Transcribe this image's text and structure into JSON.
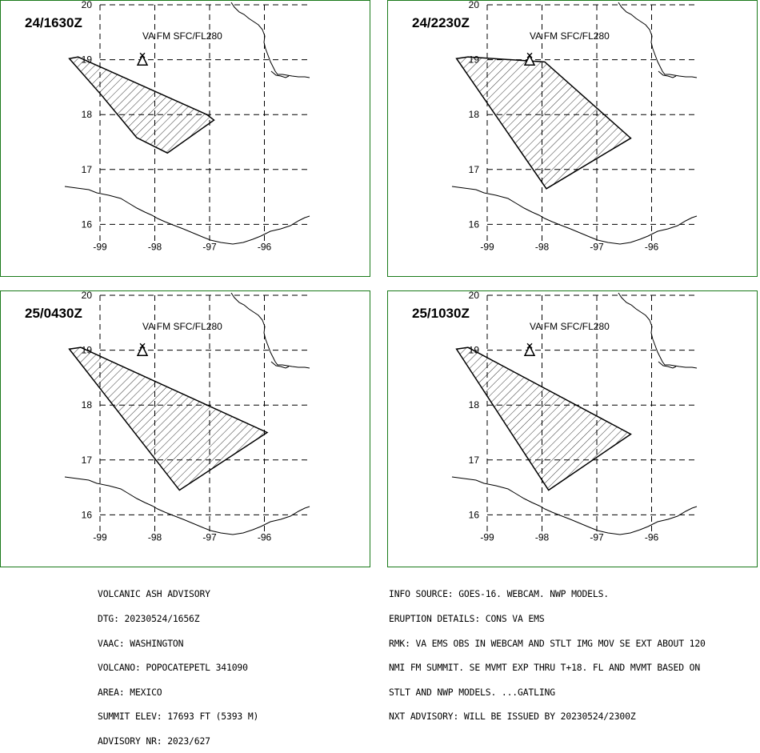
{
  "panels": [
    {
      "valid_time": "24/1630Z",
      "layer": "VA FM SFC/FL280",
      "ash_polygon": [
        [
          -99.56,
          19.02
        ],
        [
          -98.97,
          18.35
        ],
        [
          -98.33,
          17.58
        ],
        [
          -97.77,
          17.3
        ],
        [
          -96.92,
          17.9
        ],
        [
          -97.05,
          18.0
        ],
        [
          -99.4,
          19.05
        ]
      ]
    },
    {
      "valid_time": "24/2230Z",
      "layer": "VA FM SFC/FL280",
      "ash_polygon": [
        [
          -99.56,
          19.02
        ],
        [
          -97.92,
          16.65
        ],
        [
          -96.38,
          17.57
        ],
        [
          -97.95,
          18.96
        ],
        [
          -99.35,
          19.05
        ]
      ]
    },
    {
      "valid_time": "25/0430Z",
      "layer": "VA FM SFC/FL280",
      "ash_polygon": [
        [
          -99.56,
          19.02
        ],
        [
          -97.55,
          16.45
        ],
        [
          -95.95,
          17.5
        ],
        [
          -99.35,
          19.05
        ]
      ]
    },
    {
      "valid_time": "25/1030Z",
      "layer": "VA FM SFC/FL280",
      "ash_polygon": [
        [
          -99.56,
          19.02
        ],
        [
          -97.88,
          16.45
        ],
        [
          -96.38,
          17.47
        ],
        [
          -99.35,
          19.05
        ]
      ]
    }
  ],
  "volcano": {
    "name": "POPOCATEPETL",
    "lon": -98.62,
    "lat": 19.02
  },
  "axes": {
    "lat_ticks": [
      20,
      19,
      18,
      17,
      16
    ],
    "lon_ticks": [
      -99,
      -98,
      -97,
      -96
    ],
    "lon_range": [
      -99.1,
      -95.9
    ],
    "lat_range": [
      16.0,
      20.0
    ]
  },
  "advisory_left": [
    "VOLCANIC ASH ADVISORY",
    "DTG: 20230524/1656Z",
    "VAAC: WASHINGTON",
    "VOLCANO: POPOCATEPETL 341090",
    "AREA: MEXICO",
    "SUMMIT ELEV: 17693 FT (5393 M)",
    "ADVISORY NR: 2023/627"
  ],
  "advisory_right": [
    "INFO SOURCE: GOES-16. WEBCAM. NWP MODELS.",
    "ERUPTION DETAILS: CONS VA EMS",
    "RMK: VA EMS OBS IN WEBCAM AND STLT IMG MOV SE EXT ABOUT 120",
    "NMI FM SUMMIT. SE MVMT EXP THRU T+18. FL AND MVMT BASED ON",
    "STLT AND NWP MODELS. ...GATLING",
    "NXT ADVISORY: WILL BE ISSUED BY 20230524/2300Z"
  ],
  "colors": {
    "frame": "#1a7a1a",
    "lines": "#000000",
    "background": "#ffffff"
  }
}
